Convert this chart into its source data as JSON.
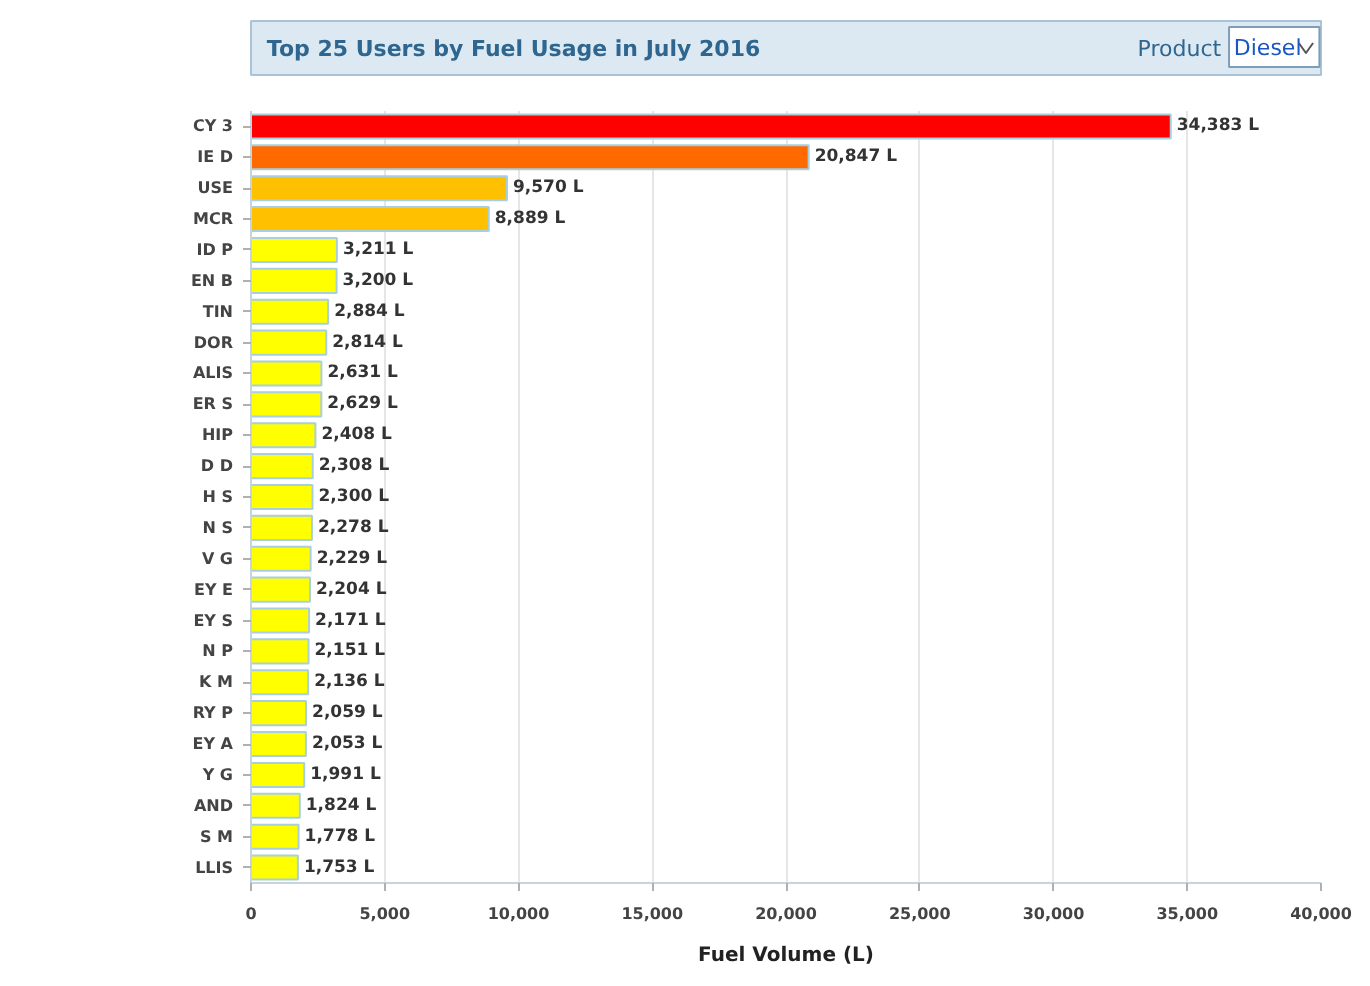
{
  "chart_data": {
    "type": "bar",
    "orientation": "horizontal",
    "title": "Top 25 Users by Fuel Usage in July 2016",
    "xlabel": "Fuel Volume (L)",
    "annotations": [
      "Product",
      "Diesel"
    ],
    "categories": [
      "CY 3",
      "IE D",
      "USE",
      "MCR",
      "ID P",
      "EN B",
      "TIN",
      "DOR",
      "ALIS",
      "ER S",
      "HIP",
      "D D",
      "H S",
      "N S",
      "V G",
      "EY E",
      "EY S",
      "N P",
      "K M",
      "RY P",
      "EY A",
      "Y G",
      "AND",
      "S M",
      "LLIS"
    ],
    "values": [
      34383,
      20847,
      9570,
      8889,
      3211,
      3200,
      2884,
      2814,
      2631,
      2629,
      2408,
      2308,
      2300,
      2278,
      2229,
      2204,
      2171,
      2151,
      2136,
      2059,
      2053,
      1991,
      1824,
      1778,
      1753
    ],
    "value_labels": [
      "34,383 L",
      "20,847 L",
      "9,570 L",
      "8,889 L",
      "3,211 L",
      "3,200 L",
      "2,884 L",
      "2,814 L",
      "2,631 L",
      "2,629 L",
      "2,408 L",
      "2,308 L",
      "2,300 L",
      "2,278 L",
      "2,229 L",
      "2,204 L",
      "2,171 L",
      "2,151 L",
      "2,136 L",
      "2,059 L",
      "2,053 L",
      "1,991 L",
      "1,824 L",
      "1,778 L",
      "1,753 L"
    ],
    "colors": [
      "#ff0000",
      "#ff6a00",
      "#ffc000",
      "#ffc000",
      "#ffff00",
      "#ffff00",
      "#ffff00",
      "#ffff00",
      "#ffff00",
      "#ffff00",
      "#ffff00",
      "#ffff00",
      "#ffff00",
      "#ffff00",
      "#ffff00",
      "#ffff00",
      "#ffff00",
      "#ffff00",
      "#ffff00",
      "#ffff00",
      "#ffff00",
      "#ffff00",
      "#ffff00",
      "#ffff00",
      "#ffff00"
    ],
    "xlim": [
      0,
      40000
    ],
    "xticks": [
      0,
      {
        "value": 5000,
        "label": "5,000"
      },
      {
        "value": 10000,
        "label": "10,000"
      },
      {
        "value": 15000,
        "label": "15,000"
      },
      {
        "value": 20000,
        "label": "20,000"
      },
      {
        "value": 25000,
        "label": "25,000"
      },
      {
        "value": 30000,
        "label": "30,000"
      },
      {
        "value": 35000,
        "label": "35,000"
      },
      {
        "value": 40000,
        "label": "40,000"
      }
    ],
    "grid": "x"
  }
}
